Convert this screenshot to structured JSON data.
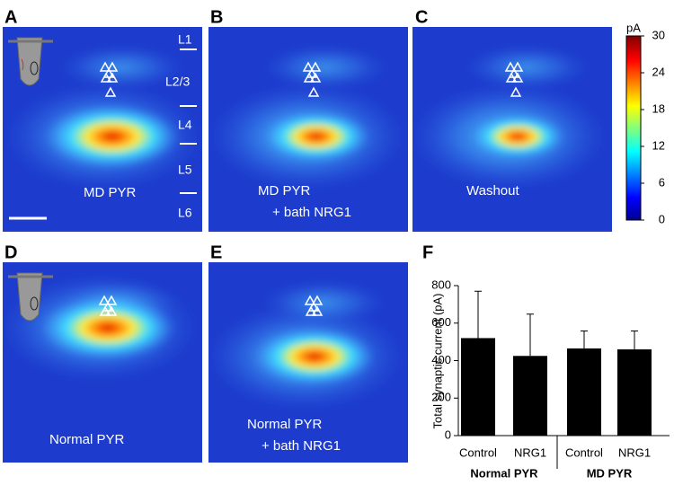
{
  "panels": [
    {
      "letter": "A",
      "label": "MD PYR"
    },
    {
      "letter": "B",
      "label": "MD PYR",
      "label2": "+ bath NRG1"
    },
    {
      "letter": "C",
      "label": "Washout"
    },
    {
      "letter": "D",
      "label": "Normal PYR"
    },
    {
      "letter": "E",
      "label": "Normal PYR",
      "label2": "+ bath NRG1"
    }
  ],
  "layers": [
    "L1",
    "L2/3",
    "L4",
    "L5",
    "L6"
  ],
  "colorbar": {
    "unit": "pA",
    "lim": [
      0,
      30
    ],
    "ticks": [
      0,
      6,
      12,
      18,
      24,
      30
    ]
  },
  "chart_data": {
    "type": "bar",
    "panel": "F",
    "ylabel": "Total synaptic current (pA)",
    "categories": [
      "Control",
      "NRG1",
      "Control",
      "NRG1"
    ],
    "groups": [
      "Normal PYR",
      "MD PYR"
    ],
    "values": [
      520,
      425,
      465,
      460
    ],
    "errors": [
      250,
      223,
      93,
      98
    ],
    "color": "#000000",
    "ylim": [
      0,
      800
    ],
    "yticks": [
      0,
      200,
      400,
      600,
      800
    ]
  }
}
